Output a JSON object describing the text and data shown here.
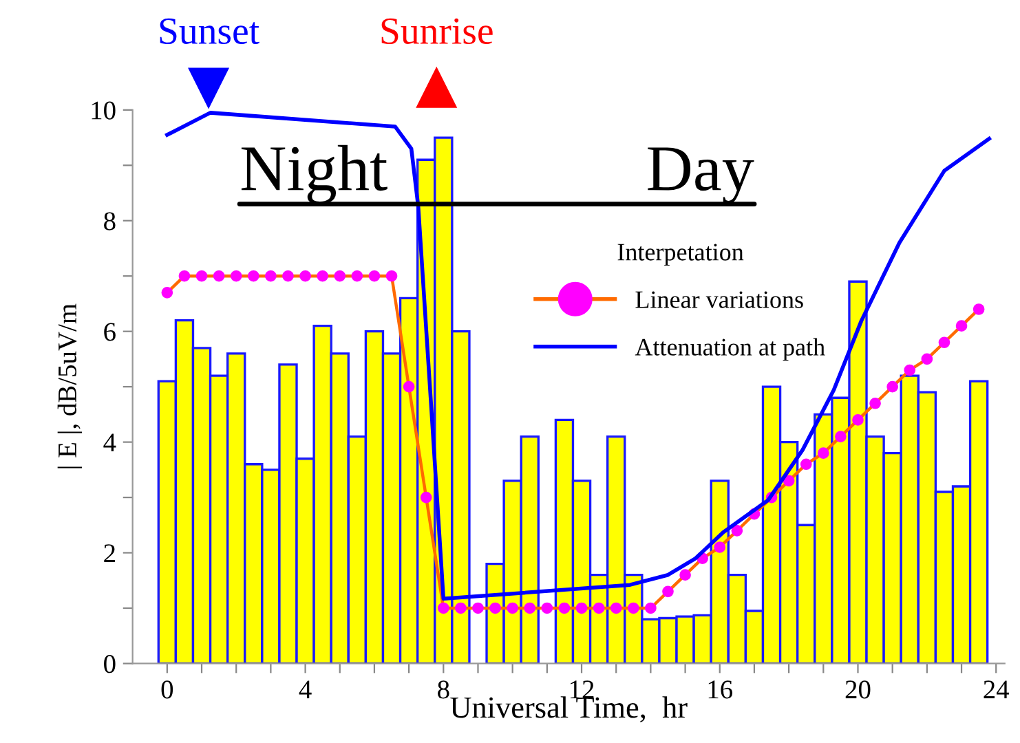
{
  "chart_data": {
    "type": "bar",
    "xlabel": "Universal Time,  hr",
    "ylabel": "| E |, dB/5uV/m",
    "legend_title": "Interpetation",
    "legend": "upper right",
    "grid": false,
    "xlim": [
      -1,
      24.25
    ],
    "xticks": [
      0,
      {
        "value": 1,
        "label": null
      },
      {
        "value": 2,
        "label": null
      },
      {
        "value": 3,
        "label": null
      },
      4,
      {
        "value": 5,
        "label": null
      },
      {
        "value": 6,
        "label": null
      },
      {
        "value": 7,
        "label": null
      },
      8,
      {
        "value": 9,
        "label": null
      },
      {
        "value": 10,
        "label": null
      },
      {
        "value": 11,
        "label": null
      },
      12,
      {
        "value": 13,
        "label": null
      },
      {
        "value": 14,
        "label": null
      },
      {
        "value": 15,
        "label": null
      },
      16,
      {
        "value": 17,
        "label": null
      },
      {
        "value": 18,
        "label": null
      },
      {
        "value": 19,
        "label": null
      },
      20,
      {
        "value": 21,
        "label": null
      },
      {
        "value": 22,
        "label": null
      },
      {
        "value": 23,
        "label": null
      },
      24
    ],
    "ylim": [
      0,
      10
    ],
    "yticks": [
      0,
      {
        "value": 1,
        "label": null
      },
      2,
      {
        "value": 3,
        "label": null
      },
      4,
      {
        "value": 5,
        "label": null
      },
      6,
      {
        "value": 7,
        "label": null
      },
      8,
      {
        "value": 9,
        "label": null
      },
      10
    ],
    "annotations": [
      "Sunset",
      "Sunrise",
      "Night",
      "Day"
    ],
    "series": [
      {
        "color": "#ffff00",
        "x": [
          0,
          0.5,
          1,
          1.5,
          2,
          2.5,
          3,
          3.5,
          4,
          4.5,
          5,
          5.5,
          6,
          6.5,
          7,
          7.5,
          8,
          8.5,
          9,
          9.5,
          10,
          10.5,
          11,
          11.5,
          12,
          12.5,
          13,
          13.5,
          14,
          14.5,
          15,
          15.5,
          16,
          16.5,
          17,
          17.5,
          18,
          18.5,
          19,
          19.5,
          20,
          20.5,
          21,
          21.5,
          22,
          22.5,
          23,
          23.5
        ],
        "values": [
          5.1,
          6.2,
          5.7,
          5.2,
          5.6,
          3.6,
          3.5,
          5.4,
          3.7,
          6.1,
          5.6,
          4.1,
          6.0,
          5.6,
          6.6,
          9.1,
          9.5,
          6.0,
          null,
          1.8,
          3.3,
          4.1,
          null,
          4.4,
          3.3,
          1.6,
          4.1,
          1.6,
          0.8,
          0.82,
          0.85,
          0.87,
          3.3,
          1.6,
          0.95,
          5.0,
          4.0,
          2.5,
          4.5,
          4.8,
          6.9,
          4.1,
          3.8,
          5.2,
          4.9,
          3.1,
          3.2,
          5.1
        ]
      },
      {
        "type": "line",
        "name": "Linear variations",
        "color": "#ff6a00",
        "marker": "circle",
        "x": [
          0,
          0.5,
          1,
          1.5,
          2,
          2.5,
          3,
          3.5,
          4,
          4.5,
          5,
          5.5,
          6,
          6.5,
          7,
          7.5,
          8,
          8.5,
          9,
          9.5,
          10,
          10.5,
          11,
          11.5,
          12,
          12.5,
          13,
          13.5,
          14,
          14.5,
          15,
          15.5,
          16,
          16.5,
          17,
          17.5,
          18,
          18.5,
          19,
          19.5,
          20,
          20.5,
          21,
          21.5,
          22,
          22.5,
          23,
          23.5
        ],
        "values": [
          6.7,
          7.0,
          7.0,
          7.0,
          7.0,
          7.0,
          7.0,
          7.0,
          7.0,
          7.0,
          7.0,
          7.0,
          7.0,
          7.0,
          5.0,
          3.0,
          1.0,
          1.0,
          1.0,
          1.0,
          1.0,
          1.0,
          1.0,
          1.0,
          1.0,
          1.0,
          1.0,
          1.0,
          1.0,
          1.3,
          1.6,
          1.9,
          2.1,
          2.4,
          2.7,
          3.0,
          3.3,
          3.6,
          3.8,
          4.1,
          4.4,
          4.7,
          5.0,
          5.3,
          5.5,
          5.8,
          6.1,
          6.4
        ]
      },
      {
        "type": "line",
        "name": "Attenuation at path",
        "color": "#0000ff",
        "marker": "none",
        "x": [
          0,
          1.25,
          6.6,
          7.07,
          7.27,
          7.65,
          8.0,
          13.4,
          14.5,
          15.3,
          16.1,
          17.4,
          18.4,
          19.3,
          20.1,
          21.2,
          22.5,
          23.8
        ],
        "values": [
          9.55,
          9.95,
          9.7,
          9.3,
          8.26,
          4.6,
          1.17,
          1.42,
          1.6,
          1.9,
          2.37,
          2.95,
          3.86,
          4.94,
          6.19,
          7.6,
          8.9,
          9.48
        ]
      }
    ]
  }
}
